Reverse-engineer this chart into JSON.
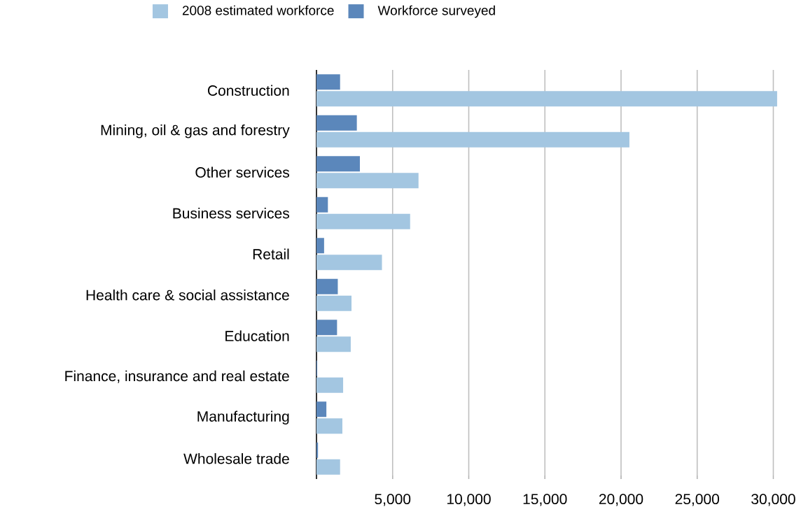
{
  "chart_data": {
    "type": "bar",
    "orientation": "horizontal",
    "categories": [
      "Construction",
      "Mining, oil & gas and forestry",
      "Other services",
      "Business services",
      "Retail",
      "Health care & social assistance",
      "Education",
      "Finance, insurance and real estate",
      "Manufacturing",
      "Wholesale trade"
    ],
    "series": [
      {
        "name": "2008 estimated workforce",
        "color": "#a3c6e1",
        "values": [
          30250,
          20550,
          6700,
          6150,
          4300,
          2300,
          2250,
          1750,
          1700,
          1550
        ]
      },
      {
        "name": "Workforce surveyed",
        "color": "#5b87bb",
        "values": [
          1550,
          2650,
          2850,
          750,
          500,
          1400,
          1350,
          50,
          650,
          100
        ]
      }
    ],
    "xlim": [
      0,
      30300
    ],
    "xticks": [
      {
        "value": 5000,
        "label": "5,000"
      },
      {
        "value": 10000,
        "label": "10,000"
      },
      {
        "value": 15000,
        "label": "15,000"
      },
      {
        "value": 20000,
        "label": "20,000"
      },
      {
        "value": 25000,
        "label": "25,000"
      },
      {
        "value": 30000,
        "label": "30,000"
      }
    ],
    "grid": "x",
    "legend": "top"
  }
}
